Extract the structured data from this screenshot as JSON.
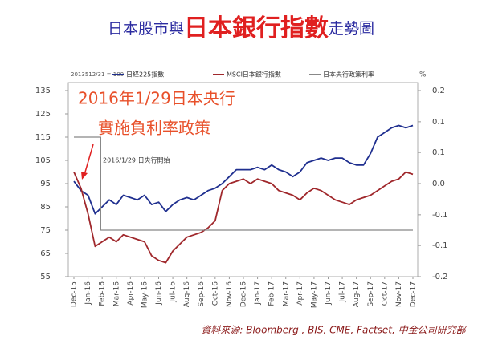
{
  "chart_data": {
    "type": "line",
    "title_segments": [
      "日本股市與",
      "日本銀行指數",
      "走勢圖"
    ],
    "index_note": "2013512/31 = 100",
    "y2_unit": "%",
    "annotation_lines": [
      "2016年1/29日本央行",
      "實施負利率政策"
    ],
    "small_annotation": "2016/1/29  日央行開始",
    "source": "資料來源: Bloomberg , BIS, CME, Factset, 中金公司研究部",
    "x": [
      0,
      0.5,
      1,
      1.5,
      2,
      2.5,
      3,
      3.5,
      4,
      4.5,
      5,
      5.5,
      6,
      6.5,
      7,
      7.5,
      8,
      8.5,
      9,
      9.5,
      10,
      10.5,
      11,
      11.5,
      12,
      12.5,
      13,
      13.5,
      14,
      14.5,
      15,
      15.5,
      16,
      16.5,
      17,
      17.5,
      18,
      18.5,
      19,
      19.5,
      20,
      20.5,
      21,
      21.5,
      22,
      22.5,
      23,
      23.5,
      24
    ],
    "xlim": [
      0,
      24
    ],
    "xticks": [
      {
        "value": 0,
        "label": "Dec-15"
      },
      {
        "value": 1,
        "label": "Jan-16"
      },
      {
        "value": 2,
        "label": "Feb-16"
      },
      {
        "value": 3,
        "label": "Mar-16"
      },
      {
        "value": 4,
        "label": "Apr-16"
      },
      {
        "value": 5,
        "label": "May-16"
      },
      {
        "value": 6,
        "label": "Jun-16"
      },
      {
        "value": 7,
        "label": "Jul-16"
      },
      {
        "value": 8,
        "label": "Aug-16"
      },
      {
        "value": 9,
        "label": "Sep-16"
      },
      {
        "value": 10,
        "label": "Oct-16"
      },
      {
        "value": 11,
        "label": "Nov-16"
      },
      {
        "value": 12,
        "label": "Dec-16"
      },
      {
        "value": 13,
        "label": "Jan-17"
      },
      {
        "value": 14,
        "label": "Feb-17"
      },
      {
        "value": 15,
        "label": "Mar-17"
      },
      {
        "value": 16,
        "label": "Apr-17"
      },
      {
        "value": 17,
        "label": "May-17"
      },
      {
        "value": 18,
        "label": "Jun-17"
      },
      {
        "value": 19,
        "label": "Jul-17"
      },
      {
        "value": 20,
        "label": "Aug-17"
      },
      {
        "value": 21,
        "label": "Sep-17"
      },
      {
        "value": 22,
        "label": "Oct-17"
      },
      {
        "value": 23,
        "label": "Nov-17"
      },
      {
        "value": 24,
        "label": "Dec-17"
      }
    ],
    "ylim": [
      55,
      135
    ],
    "yticks": [
      135,
      125,
      115,
      105,
      95,
      85,
      75,
      65,
      55
    ],
    "y2lim": [
      -0.2,
      0.2
    ],
    "y2ticks": [
      0.2,
      {
        "value": 0.133,
        "label": "0.1"
      },
      {
        "value": 0.067,
        "label": "0.1"
      },
      {
        "value": 0,
        "label": "0.0"
      },
      {
        "value": -0.067,
        "label": "-0.1"
      },
      {
        "value": -0.133,
        "label": "-0.1"
      },
      -0.2
    ],
    "series": [
      {
        "name": "日経225指數",
        "color": "#1f2f8f",
        "values": [
          96,
          92,
          90,
          82,
          85,
          88,
          86,
          90,
          89,
          88,
          90,
          86,
          87,
          83,
          86,
          88,
          89,
          88,
          90,
          92,
          93,
          95,
          98,
          101,
          101,
          101,
          102,
          101,
          103,
          101,
          100,
          98,
          100,
          104,
          105,
          106,
          105,
          106,
          106,
          104,
          103,
          103,
          108,
          115,
          117,
          119,
          120,
          119,
          120
        ]
      },
      {
        "name": "MSCI日本銀行指數",
        "color": "#a0282c",
        "values": [
          100,
          93,
          82,
          68,
          70,
          72,
          70,
          73,
          72,
          71,
          70,
          64,
          62,
          61,
          66,
          69,
          72,
          73,
          74,
          76,
          79,
          92,
          95,
          96,
          97,
          95,
          97,
          96,
          95,
          92,
          91,
          90,
          88,
          91,
          93,
          92,
          90,
          88,
          87,
          86,
          88,
          89,
          90,
          92,
          94,
          96,
          97,
          100,
          99
        ]
      },
      {
        "name": "日本央行政策利率",
        "color": "#888888",
        "axis": "y2",
        "x": [
          0,
          1.9,
          1.9,
          24
        ],
        "values": [
          0.1,
          0.1,
          -0.1,
          -0.1
        ]
      }
    ]
  }
}
